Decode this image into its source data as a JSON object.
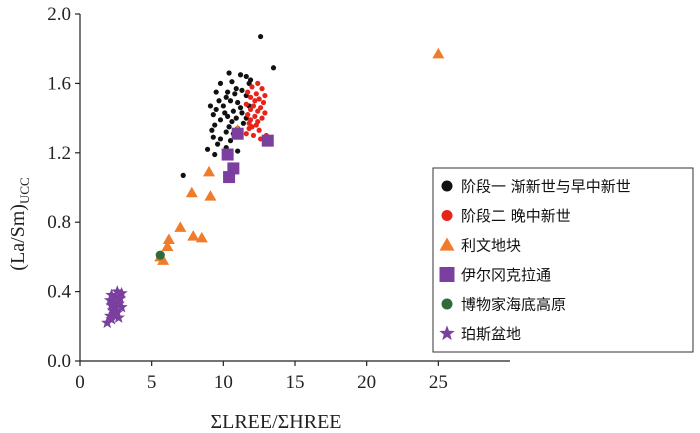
{
  "chart_data": {
    "type": "scatter",
    "title": "",
    "xlabel": "ΣLREE/ΣHREE",
    "ylabel_main": "(La/Sm)",
    "ylabel_sub": "UCC",
    "xlim": [
      0,
      30
    ],
    "ylim": [
      0,
      2.0
    ],
    "xticks": [
      0,
      5,
      10,
      15,
      20,
      25
    ],
    "yticks": [
      0.0,
      0.4,
      0.8,
      1.2,
      1.6,
      2.0
    ],
    "ytick_labels": [
      "0.0",
      "0.4",
      "0.8",
      "1.2",
      "1.6",
      "2.0"
    ],
    "grid": false,
    "legend_position": "right",
    "series": [
      {
        "name": "阶段一 渐新世与早中新世",
        "marker": "circle",
        "color": "#111111",
        "points": [
          [
            12.6,
            1.87
          ],
          [
            13.5,
            1.69
          ],
          [
            10.4,
            1.66
          ],
          [
            11.2,
            1.65
          ],
          [
            11.6,
            1.64
          ],
          [
            11.9,
            1.62
          ],
          [
            9.8,
            1.6
          ],
          [
            10.6,
            1.61
          ],
          [
            11.8,
            1.6
          ],
          [
            10.9,
            1.57
          ],
          [
            11.3,
            1.56
          ],
          [
            10.3,
            1.55
          ],
          [
            9.5,
            1.55
          ],
          [
            10.8,
            1.54
          ],
          [
            11.6,
            1.53
          ],
          [
            10.2,
            1.52
          ],
          [
            9.7,
            1.5
          ],
          [
            10.5,
            1.5
          ],
          [
            11.0,
            1.49
          ],
          [
            9.1,
            1.47
          ],
          [
            10.0,
            1.47
          ],
          [
            11.2,
            1.46
          ],
          [
            11.8,
            1.47
          ],
          [
            9.5,
            1.45
          ],
          [
            10.7,
            1.44
          ],
          [
            10.1,
            1.43
          ],
          [
            11.3,
            1.43
          ],
          [
            9.3,
            1.42
          ],
          [
            10.3,
            1.41
          ],
          [
            10.9,
            1.4
          ],
          [
            11.6,
            1.4
          ],
          [
            9.8,
            1.39
          ],
          [
            10.6,
            1.38
          ],
          [
            11.4,
            1.37
          ],
          [
            9.4,
            1.36
          ],
          [
            10.4,
            1.35
          ],
          [
            11.0,
            1.34
          ],
          [
            9.2,
            1.33
          ],
          [
            10.2,
            1.32
          ],
          [
            10.7,
            1.31
          ],
          [
            9.3,
            1.29
          ],
          [
            9.8,
            1.28
          ],
          [
            10.5,
            1.27
          ],
          [
            9.6,
            1.25
          ],
          [
            10.2,
            1.23
          ],
          [
            11.0,
            1.21
          ],
          [
            8.9,
            1.22
          ],
          [
            9.4,
            1.19
          ],
          [
            7.2,
            1.07
          ]
        ]
      },
      {
        "name": "阶段二 晚中新世",
        "marker": "circle",
        "color": "#e8241a",
        "points": [
          [
            12.4,
            1.6
          ],
          [
            12.0,
            1.58
          ],
          [
            12.7,
            1.57
          ],
          [
            11.7,
            1.55
          ],
          [
            12.3,
            1.54
          ],
          [
            12.9,
            1.53
          ],
          [
            11.9,
            1.52
          ],
          [
            12.5,
            1.51
          ],
          [
            12.2,
            1.5
          ],
          [
            12.8,
            1.49
          ],
          [
            11.6,
            1.48
          ],
          [
            12.1,
            1.47
          ],
          [
            12.6,
            1.46
          ],
          [
            11.9,
            1.45
          ],
          [
            12.4,
            1.44
          ],
          [
            12.9,
            1.43
          ],
          [
            11.7,
            1.42
          ],
          [
            12.2,
            1.41
          ],
          [
            12.7,
            1.4
          ],
          [
            11.9,
            1.39
          ],
          [
            12.4,
            1.38
          ],
          [
            11.8,
            1.37
          ],
          [
            12.3,
            1.36
          ],
          [
            12.0,
            1.35
          ],
          [
            11.8,
            1.34
          ],
          [
            12.5,
            1.33
          ],
          [
            11.6,
            1.31
          ],
          [
            12.1,
            1.3
          ],
          [
            13.0,
            1.3
          ],
          [
            12.6,
            1.28
          ]
        ]
      },
      {
        "name": "利文地块",
        "marker": "triangle",
        "color": "#f07b2b",
        "points": [
          [
            25.0,
            1.77
          ],
          [
            11.0,
            1.33
          ],
          [
            9.0,
            1.09
          ],
          [
            7.8,
            0.97
          ],
          [
            9.1,
            0.95
          ],
          [
            7.0,
            0.77
          ],
          [
            7.9,
            0.72
          ],
          [
            8.5,
            0.71
          ],
          [
            6.2,
            0.7
          ],
          [
            6.1,
            0.66
          ],
          [
            5.6,
            0.6
          ],
          [
            5.8,
            0.58
          ]
        ]
      },
      {
        "name": "伊尔冈克拉通",
        "marker": "square",
        "color": "#7b3fa0",
        "points": [
          [
            11.0,
            1.31
          ],
          [
            13.1,
            1.27
          ],
          [
            10.3,
            1.19
          ],
          [
            10.7,
            1.11
          ],
          [
            10.4,
            1.06
          ]
        ]
      },
      {
        "name": "博物家海底高原",
        "marker": "circle",
        "color": "#2e6b3a",
        "points": [
          [
            5.6,
            0.61
          ]
        ]
      },
      {
        "name": "珀斯盆地",
        "marker": "star",
        "color": "#7b3fa0",
        "points": [
          [
            2.6,
            0.4
          ],
          [
            2.9,
            0.39
          ],
          [
            2.2,
            0.38
          ],
          [
            2.5,
            0.37
          ],
          [
            2.8,
            0.36
          ],
          [
            2.1,
            0.35
          ],
          [
            2.4,
            0.34
          ],
          [
            2.7,
            0.33
          ],
          [
            2.2,
            0.32
          ],
          [
            2.5,
            0.31
          ],
          [
            2.9,
            0.31
          ],
          [
            2.3,
            0.29
          ],
          [
            2.6,
            0.28
          ],
          [
            2.4,
            0.27
          ],
          [
            2.1,
            0.26
          ],
          [
            2.7,
            0.25
          ],
          [
            2.2,
            0.24
          ],
          [
            1.9,
            0.22
          ]
        ]
      }
    ]
  }
}
